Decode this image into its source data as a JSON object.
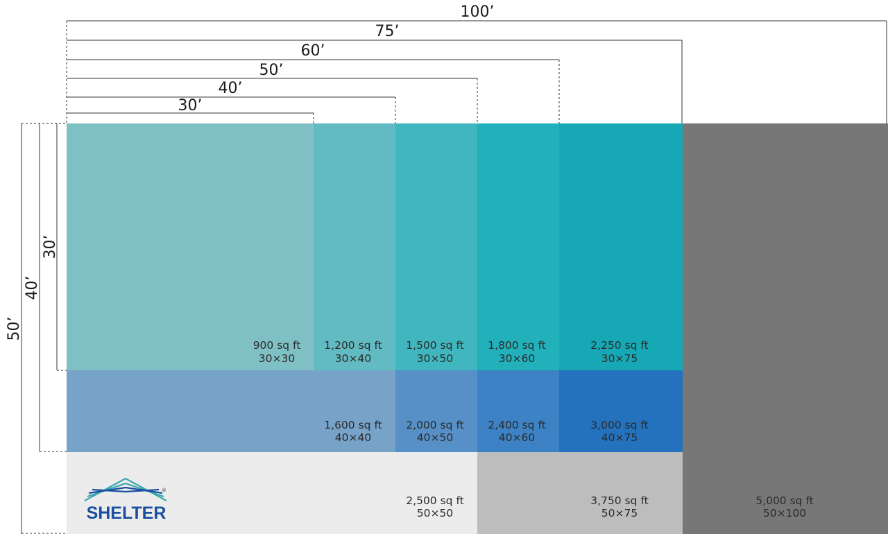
{
  "width_labels": [
    "100’",
    "75’",
    "60’",
    "50’",
    "40’",
    "30’"
  ],
  "depth_labels": [
    "30’",
    "40’",
    "50’"
  ],
  "cells": [
    {
      "area": "900 sq ft",
      "dims": "30×30",
      "color": "#7fc0c5"
    },
    {
      "area": "1,200 sq ft",
      "dims": "30×40",
      "color": "#62bbc2"
    },
    {
      "area": "1,500 sq ft",
      "dims": "30×50",
      "color": "#40b6be"
    },
    {
      "area": "1,800 sq ft",
      "dims": "30×60",
      "color": "#22b0bb"
    },
    {
      "area": "2,250 sq ft",
      "dims": "30×75",
      "color": "#16a8b4"
    },
    {
      "area": "1,600 sq ft",
      "dims": "40×40",
      "color": "#77a3c9"
    },
    {
      "area": "2,000 sq ft",
      "dims": "40×50",
      "color": "#5790c7"
    },
    {
      "area": "2,400 sq ft",
      "dims": "40×60",
      "color": "#3c82c4"
    },
    {
      "area": "3,000 sq ft",
      "dims": "40×75",
      "color": "#2472bd"
    },
    {
      "area": "2,500 sq ft",
      "dims": "50×50",
      "color": "#ececec"
    },
    {
      "area": "3,750 sq ft",
      "dims": "50×75",
      "color": "#bdbdbd"
    },
    {
      "area": "5,000 sq ft",
      "dims": "50×100",
      "color": "#777777"
    }
  ],
  "blank_cells": {
    "row2_left_color": "#77a3c9",
    "row3_left_color": "#ececec"
  },
  "logo": {
    "name": "SHELTER",
    "registered": "®",
    "color": "#1a4fa0",
    "accent": "#3aa7ad"
  },
  "line_color": "#333333"
}
